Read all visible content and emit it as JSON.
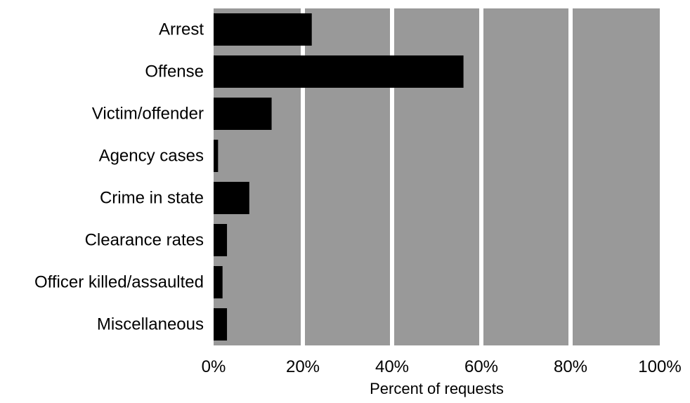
{
  "chart_data": {
    "type": "bar",
    "orientation": "horizontal",
    "categories": [
      "Arrest",
      "Offense",
      "Victim/offender",
      "Agency cases",
      "Crime in state",
      "Clearance rates",
      "Officer killed/assaulted",
      "Miscellaneous"
    ],
    "values": [
      22,
      56,
      13,
      1,
      8,
      3,
      2,
      3
    ],
    "xlabel": "Percent of requests",
    "ylabel": "",
    "xlim": [
      0,
      100
    ],
    "xticks": [
      0,
      20,
      40,
      60,
      80,
      100
    ],
    "xtick_labels": [
      "0%",
      "20%",
      "40%",
      "60%",
      "80%",
      "100%"
    ],
    "grid": "vertical",
    "legend": "none"
  },
  "colors": {
    "panel_background": "#999999",
    "grid_line": "#ffffff",
    "bar": "#000000",
    "page_background": "#ffffff"
  }
}
